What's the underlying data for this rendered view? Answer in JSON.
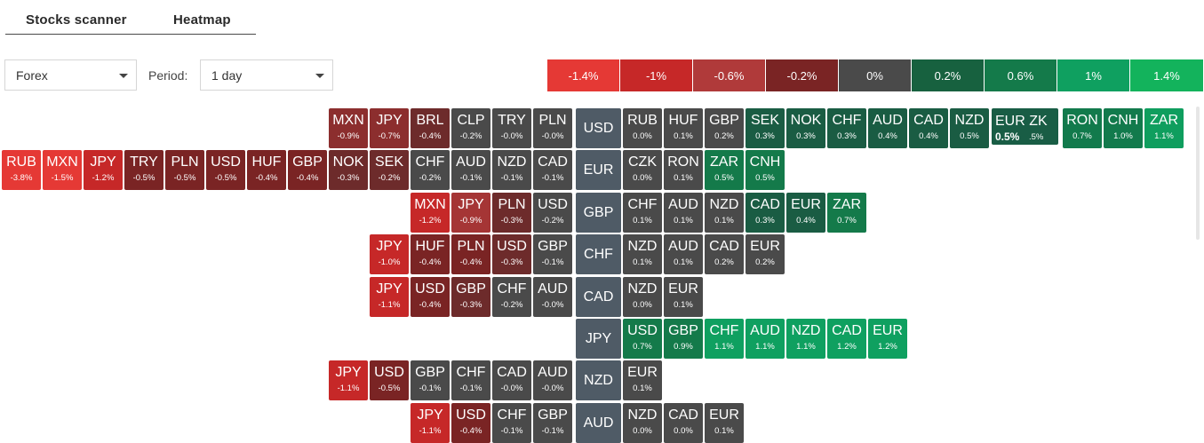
{
  "tabs": {
    "scanner": "Stocks scanner",
    "heatmap": "Heatmap"
  },
  "filters": {
    "market": "Forex",
    "period_label": "Period:",
    "period": "1 day"
  },
  "legend": [
    {
      "label": "-1.4%",
      "color": "#e53935"
    },
    {
      "label": "-1%",
      "color": "#c62828"
    },
    {
      "label": "-0.6%",
      "color": "#b03a3a"
    },
    {
      "label": "-0.2%",
      "color": "#7a2424"
    },
    {
      "label": "0%",
      "color": "#4a4a4a"
    },
    {
      "label": "0.2%",
      "color": "#17613f"
    },
    {
      "label": "0.6%",
      "color": "#147a4a"
    },
    {
      "label": "1%",
      "color": "#0fa060"
    },
    {
      "label": "1.4%",
      "color": "#13b35c"
    }
  ],
  "rows": [
    {
      "base": "USD",
      "left": [
        {
          "cur": "MXN",
          "chg": "-0.9%",
          "color": "#8c2e2e"
        },
        {
          "cur": "JPY",
          "chg": "-0.7%",
          "color": "#8c2e2e"
        },
        {
          "cur": "BRL",
          "chg": "-0.4%",
          "color": "#6d2b2b"
        },
        {
          "cur": "CLP",
          "chg": "-0.2%",
          "color": "#4a4a4a"
        },
        {
          "cur": "TRY",
          "chg": "-0.0%",
          "color": "#4a4a4a"
        },
        {
          "cur": "PLN",
          "chg": "-0.0%",
          "color": "#4a4a4a"
        }
      ],
      "right": [
        {
          "cur": "RUB",
          "chg": "0.0%",
          "color": "#4a4a4a"
        },
        {
          "cur": "HUF",
          "chg": "0.1%",
          "color": "#4a4a4a"
        },
        {
          "cur": "GBP",
          "chg": "0.2%",
          "color": "#4a4a4a"
        },
        {
          "cur": "SEK",
          "chg": "0.3%",
          "color": "#1a5c43"
        },
        {
          "cur": "NOK",
          "chg": "0.3%",
          "color": "#1a5c43"
        },
        {
          "cur": "CHF",
          "chg": "0.3%",
          "color": "#1a5c43"
        },
        {
          "cur": "AUD",
          "chg": "0.4%",
          "color": "#1a5c43"
        },
        {
          "cur": "CAD",
          "chg": "0.4%",
          "color": "#1a5c43"
        },
        {
          "cur": "NZD",
          "chg": "0.5%",
          "color": "#1a5c43"
        }
      ],
      "extra_right": [
        {
          "cur": "RON",
          "chg": "0.7%",
          "color": "#127a4c"
        },
        {
          "cur": "CNH",
          "chg": "1.0%",
          "color": "#127a4c"
        },
        {
          "cur": "ZAR",
          "chg": "1.1%",
          "color": "#0f9e5e"
        }
      ]
    },
    {
      "base": "EUR",
      "left": [
        {
          "cur": "RUB",
          "chg": "-3.8%",
          "color": "#e53935"
        },
        {
          "cur": "MXN",
          "chg": "-1.5%",
          "color": "#e53935"
        },
        {
          "cur": "JPY",
          "chg": "-1.2%",
          "color": "#c62828"
        },
        {
          "cur": "TRY",
          "chg": "-0.5%",
          "color": "#7a2424"
        },
        {
          "cur": "PLN",
          "chg": "-0.5%",
          "color": "#7a2424"
        },
        {
          "cur": "USD",
          "chg": "-0.5%",
          "color": "#7a2424"
        },
        {
          "cur": "HUF",
          "chg": "-0.4%",
          "color": "#7a2424"
        },
        {
          "cur": "GBP",
          "chg": "-0.4%",
          "color": "#7a2424"
        },
        {
          "cur": "NOK",
          "chg": "-0.3%",
          "color": "#6d2b2b"
        },
        {
          "cur": "SEK",
          "chg": "-0.2%",
          "color": "#6d2b2b"
        },
        {
          "cur": "CHF",
          "chg": "-0.2%",
          "color": "#4a4a4a"
        },
        {
          "cur": "AUD",
          "chg": "-0.1%",
          "color": "#4a4a4a"
        },
        {
          "cur": "NZD",
          "chg": "-0.1%",
          "color": "#4a4a4a"
        },
        {
          "cur": "CAD",
          "chg": "-0.1%",
          "color": "#4a4a4a"
        }
      ],
      "right": [
        {
          "cur": "CZK",
          "chg": "0.0%",
          "color": "#4a4a4a"
        },
        {
          "cur": "RON",
          "chg": "0.1%",
          "color": "#4a4a4a"
        },
        {
          "cur": "ZAR",
          "chg": "0.5%",
          "color": "#147a4a"
        },
        {
          "cur": "CNH",
          "chg": "0.5%",
          "color": "#147a4a"
        }
      ]
    },
    {
      "base": "GBP",
      "left": [
        {
          "cur": "MXN",
          "chg": "-1.2%",
          "color": "#c62828"
        },
        {
          "cur": "JPY",
          "chg": "-0.9%",
          "color": "#a53535"
        },
        {
          "cur": "PLN",
          "chg": "-0.3%",
          "color": "#6d2b2b"
        },
        {
          "cur": "USD",
          "chg": "-0.2%",
          "color": "#4a4a4a"
        }
      ],
      "right": [
        {
          "cur": "CHF",
          "chg": "0.1%",
          "color": "#4a4a4a"
        },
        {
          "cur": "AUD",
          "chg": "0.1%",
          "color": "#4a4a4a"
        },
        {
          "cur": "NZD",
          "chg": "0.1%",
          "color": "#4a4a4a"
        },
        {
          "cur": "CAD",
          "chg": "0.3%",
          "color": "#1a5c43"
        },
        {
          "cur": "EUR",
          "chg": "0.4%",
          "color": "#1a5c43"
        },
        {
          "cur": "ZAR",
          "chg": "0.7%",
          "color": "#147a4a"
        }
      ]
    },
    {
      "base": "CHF",
      "left": [
        {
          "cur": "JPY",
          "chg": "-1.0%",
          "color": "#c62828"
        },
        {
          "cur": "HUF",
          "chg": "-0.4%",
          "color": "#7a2424"
        },
        {
          "cur": "PLN",
          "chg": "-0.4%",
          "color": "#7a2424"
        },
        {
          "cur": "USD",
          "chg": "-0.3%",
          "color": "#6d2b2b"
        },
        {
          "cur": "GBP",
          "chg": "-0.1%",
          "color": "#4a4a4a"
        }
      ],
      "right": [
        {
          "cur": "NZD",
          "chg": "0.1%",
          "color": "#4a4a4a"
        },
        {
          "cur": "AUD",
          "chg": "0.1%",
          "color": "#4a4a4a"
        },
        {
          "cur": "CAD",
          "chg": "0.2%",
          "color": "#4a4a4a"
        },
        {
          "cur": "EUR",
          "chg": "0.2%",
          "color": "#4a4a4a"
        }
      ]
    },
    {
      "base": "CAD",
      "left": [
        {
          "cur": "JPY",
          "chg": "-1.1%",
          "color": "#c62828"
        },
        {
          "cur": "USD",
          "chg": "-0.4%",
          "color": "#7a2424"
        },
        {
          "cur": "GBP",
          "chg": "-0.3%",
          "color": "#6d2b2b"
        },
        {
          "cur": "CHF",
          "chg": "-0.2%",
          "color": "#4a4a4a"
        },
        {
          "cur": "AUD",
          "chg": "-0.0%",
          "color": "#4a4a4a"
        }
      ],
      "right": [
        {
          "cur": "NZD",
          "chg": "0.0%",
          "color": "#4a4a4a"
        },
        {
          "cur": "EUR",
          "chg": "0.1%",
          "color": "#4a4a4a"
        }
      ]
    },
    {
      "base": "JPY",
      "left": [],
      "right": [
        {
          "cur": "USD",
          "chg": "0.7%",
          "color": "#147a4a"
        },
        {
          "cur": "GBP",
          "chg": "0.9%",
          "color": "#147a4a"
        },
        {
          "cur": "CHF",
          "chg": "1.1%",
          "color": "#0fa060"
        },
        {
          "cur": "AUD",
          "chg": "1.1%",
          "color": "#0fa060"
        },
        {
          "cur": "NZD",
          "chg": "1.1%",
          "color": "#0fa060"
        },
        {
          "cur": "CAD",
          "chg": "1.2%",
          "color": "#0fa060"
        },
        {
          "cur": "EUR",
          "chg": "1.2%",
          "color": "#0fa060"
        }
      ]
    },
    {
      "base": "NZD",
      "left": [
        {
          "cur": "JPY",
          "chg": "-1.1%",
          "color": "#c62828"
        },
        {
          "cur": "USD",
          "chg": "-0.5%",
          "color": "#7a2424"
        },
        {
          "cur": "GBP",
          "chg": "-0.1%",
          "color": "#4a4a4a"
        },
        {
          "cur": "CHF",
          "chg": "-0.1%",
          "color": "#4a4a4a"
        },
        {
          "cur": "CAD",
          "chg": "-0.0%",
          "color": "#4a4a4a"
        },
        {
          "cur": "AUD",
          "chg": "-0.0%",
          "color": "#4a4a4a"
        }
      ],
      "right": [
        {
          "cur": "EUR",
          "chg": "0.1%",
          "color": "#4a4a4a"
        }
      ]
    },
    {
      "base": "AUD",
      "left": [
        {
          "cur": "JPY",
          "chg": "-1.1%",
          "color": "#c62828"
        },
        {
          "cur": "USD",
          "chg": "-0.4%",
          "color": "#7a2424"
        },
        {
          "cur": "CHF",
          "chg": "-0.1%",
          "color": "#4a4a4a"
        },
        {
          "cur": "GBP",
          "chg": "-0.1%",
          "color": "#4a4a4a"
        }
      ],
      "right": [
        {
          "cur": "NZD",
          "chg": "0.0%",
          "color": "#4a4a4a"
        },
        {
          "cur": "CAD",
          "chg": "0.0%",
          "color": "#4a4a4a"
        },
        {
          "cur": "EUR",
          "chg": "0.1%",
          "color": "#4a4a4a"
        }
      ]
    }
  ],
  "eur_zk": {
    "cur": "EUR ZK",
    "chg_bold": "0.5%",
    "chg_small": ".5%"
  }
}
